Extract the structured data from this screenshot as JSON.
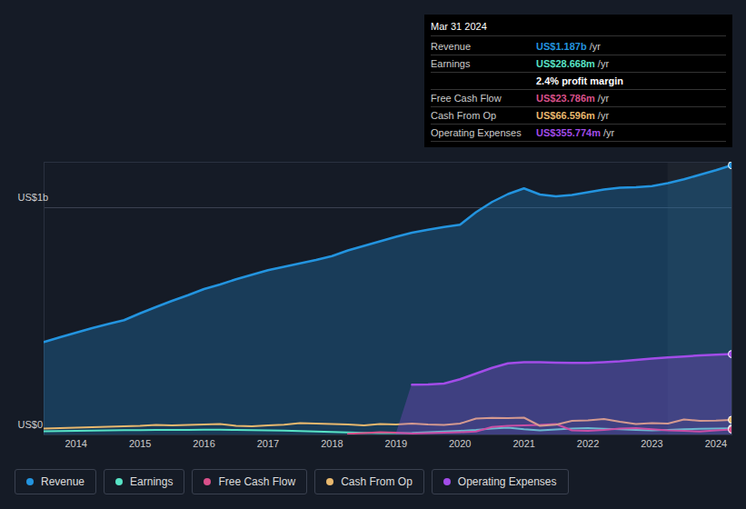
{
  "chart_data": {
    "type": "area",
    "x": [
      2013.5,
      2013.75,
      2014,
      2014.25,
      2014.5,
      2014.75,
      2015,
      2015.25,
      2015.5,
      2015.75,
      2016,
      2016.25,
      2016.5,
      2016.75,
      2017,
      2017.25,
      2017.5,
      2017.75,
      2018,
      2018.25,
      2018.5,
      2018.75,
      2019,
      2019.25,
      2019.5,
      2019.75,
      2020,
      2020.25,
      2020.5,
      2020.75,
      2021,
      2021.25,
      2021.5,
      2021.75,
      2022,
      2022.25,
      2022.5,
      2022.75,
      2023,
      2023.25,
      2023.5,
      2023.75,
      2024,
      2024.25
    ],
    "xlim": [
      2013.5,
      2024.25
    ],
    "xticks": [
      2014,
      2015,
      2016,
      2017,
      2018,
      2019,
      2020,
      2021,
      2022,
      2023,
      2024
    ],
    "ylim": [
      0,
      1200
    ],
    "yticks": [
      {
        "value": 0,
        "label": "US$0"
      },
      {
        "value": 1000,
        "label": "US$1b"
      }
    ],
    "grid": true,
    "legend": "bottom",
    "series": [
      {
        "name": "Revenue",
        "type": "area",
        "color": "#2394df",
        "values": [
          409,
          430,
          450,
          470,
          488,
          505,
          535,
          563,
          590,
          615,
          642,
          662,
          685,
          705,
          725,
          740,
          755,
          770,
          787,
          812,
          832,
          852,
          872,
          890,
          903,
          915,
          925,
          980,
          1025,
          1060,
          1085,
          1058,
          1050,
          1056,
          1068,
          1080,
          1088,
          1090,
          1095,
          1108,
          1125,
          1145,
          1165,
          1187
        ]
      },
      {
        "name": "Earnings",
        "type": "line",
        "color": "#58e3c5",
        "values": [
          16,
          17,
          18,
          19,
          20,
          21,
          21,
          22,
          22,
          22,
          23,
          23,
          22,
          21,
          20,
          19,
          17,
          15,
          13,
          11,
          9,
          8,
          8,
          9,
          12,
          15,
          18,
          22,
          28,
          32,
          25,
          20,
          24,
          28,
          30,
          27,
          25,
          22,
          20,
          22,
          25,
          27,
          28,
          28.668
        ]
      },
      {
        "name": "Free Cash Flow",
        "type": "line",
        "color": "#d9508a",
        "values": [
          null,
          null,
          null,
          null,
          null,
          null,
          null,
          null,
          null,
          null,
          null,
          null,
          null,
          null,
          null,
          null,
          null,
          null,
          null,
          5,
          8,
          12,
          10,
          6,
          8,
          10,
          12,
          15,
          35,
          40,
          42,
          44,
          48,
          20,
          18,
          22,
          28,
          30,
          25,
          20,
          18,
          15,
          20,
          23.786
        ]
      },
      {
        "name": "Cash From Op",
        "type": "line",
        "color": "#e8b86e",
        "values": [
          28,
          30,
          32,
          34,
          36,
          38,
          40,
          44,
          42,
          44,
          46,
          48,
          40,
          38,
          42,
          45,
          52,
          50,
          48,
          46,
          42,
          48,
          46,
          50,
          46,
          44,
          50,
          72,
          75,
          74,
          76,
          40,
          45,
          62,
          64,
          70,
          58,
          48,
          52,
          50,
          68,
          62,
          63,
          66.596
        ]
      },
      {
        "name": "Operating Expenses",
        "type": "area",
        "color": "#a24ce8",
        "values": [
          null,
          null,
          null,
          null,
          null,
          null,
          null,
          null,
          null,
          null,
          null,
          null,
          null,
          null,
          null,
          null,
          null,
          null,
          null,
          null,
          null,
          null,
          null,
          221,
          222,
          226,
          245,
          270,
          295,
          315,
          320,
          320,
          318,
          317,
          317,
          320,
          324,
          330,
          336,
          341,
          345,
          350,
          353,
          355.774
        ]
      }
    ],
    "annotation": {
      "title": "Mar 31 2024",
      "rows": [
        {
          "label": "Revenue",
          "value": "US$1.187b",
          "unit": "/yr"
        },
        {
          "label": "Earnings",
          "value": "US$28.668m",
          "unit": "/yr"
        },
        {
          "value": "2.4% profit margin"
        },
        {
          "label": "Free Cash Flow",
          "value": "US$23.786m",
          "unit": "/yr"
        },
        {
          "label": "Cash From Op",
          "value": "US$66.596m",
          "unit": "/yr"
        },
        {
          "label": "Operating Expenses",
          "value": "US$355.774m",
          "unit": "/yr"
        }
      ]
    }
  }
}
